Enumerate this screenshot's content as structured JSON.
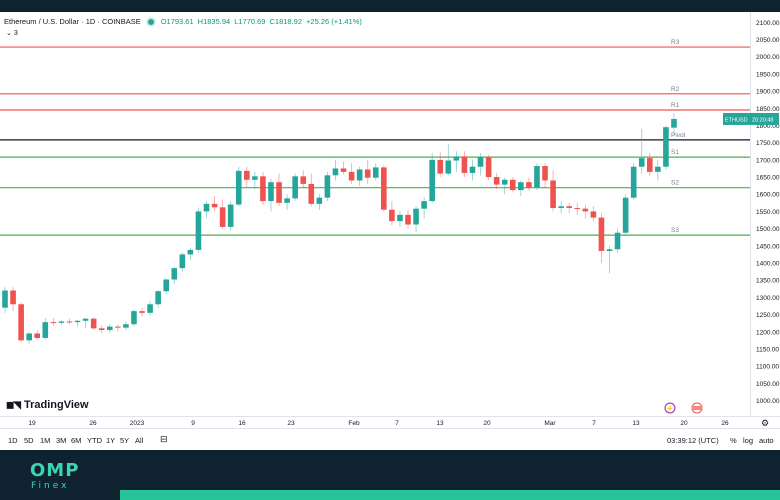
{
  "legend": {
    "title": "Ethereum / U.S. Dollar · 1D · COINBASE",
    "open": "O1793.61",
    "high": "H1835.94",
    "low": "L1770.69",
    "close": "C1818.92",
    "change": "+25.26 (+1.41%)",
    "indicators_count": "3"
  },
  "price_tag": {
    "symbol": "ETHUSD",
    "countdown": "20:20:48"
  },
  "branding": {
    "tradingview": "TradingView",
    "omp": "OMP",
    "finex": "Finex"
  },
  "bottombar": {
    "ranges": [
      "1D",
      "5D",
      "1M",
      "3M",
      "6M",
      "YTD",
      "1Y",
      "5Y",
      "All"
    ],
    "time": "03:39:12 (UTC)",
    "percent": "%",
    "log": "log",
    "auto": "auto"
  },
  "colors": {
    "up": "#26a69a",
    "down": "#ef5350",
    "resistance": "#ef5350",
    "support": "#4caf50",
    "pivot": "#131722"
  },
  "chart_data": {
    "type": "candlestick",
    "symbol": "ETHUSD",
    "ylim": [
      955,
      2130
    ],
    "y_ticks": [
      1000,
      1050,
      1100,
      1150,
      1200,
      1250,
      1300,
      1350,
      1400,
      1450,
      1500,
      1550,
      1600,
      1650,
      1700,
      1750,
      1800,
      1850,
      1900,
      1950,
      2000,
      2050,
      2100
    ],
    "x_ticks": [
      "19",
      "26",
      "2023",
      "9",
      "16",
      "23",
      "Feb",
      "7",
      "13",
      "20",
      "Mar",
      "7",
      "13",
      "20",
      "26"
    ],
    "levels": [
      {
        "name": "R3",
        "value": 2028,
        "kind": "resistance"
      },
      {
        "name": "R2",
        "value": 1892,
        "kind": "resistance"
      },
      {
        "name": "R1",
        "value": 1845,
        "kind": "resistance"
      },
      {
        "name": "Pivot",
        "value": 1758,
        "kind": "pivot"
      },
      {
        "name": "S1",
        "value": 1708,
        "kind": "support"
      },
      {
        "name": "S2",
        "value": 1619,
        "kind": "support"
      },
      {
        "name": "S3",
        "value": 1481,
        "kind": "support"
      }
    ],
    "last_price": 1818.92,
    "candles": [
      {
        "o": 1270,
        "h": 1330,
        "l": 1255,
        "c": 1320
      },
      {
        "o": 1320,
        "h": 1330,
        "l": 1260,
        "c": 1280
      },
      {
        "o": 1280,
        "h": 1285,
        "l": 1170,
        "c": 1175
      },
      {
        "o": 1175,
        "h": 1200,
        "l": 1165,
        "c": 1195
      },
      {
        "o": 1195,
        "h": 1205,
        "l": 1178,
        "c": 1182
      },
      {
        "o": 1182,
        "h": 1240,
        "l": 1178,
        "c": 1228
      },
      {
        "o": 1228,
        "h": 1240,
        "l": 1218,
        "c": 1226
      },
      {
        "o": 1226,
        "h": 1235,
        "l": 1220,
        "c": 1230
      },
      {
        "o": 1230,
        "h": 1238,
        "l": 1222,
        "c": 1228
      },
      {
        "o": 1228,
        "h": 1235,
        "l": 1215,
        "c": 1232
      },
      {
        "o": 1232,
        "h": 1240,
        "l": 1210,
        "c": 1238
      },
      {
        "o": 1238,
        "h": 1242,
        "l": 1205,
        "c": 1210
      },
      {
        "o": 1210,
        "h": 1218,
        "l": 1195,
        "c": 1205
      },
      {
        "o": 1205,
        "h": 1222,
        "l": 1198,
        "c": 1215
      },
      {
        "o": 1215,
        "h": 1220,
        "l": 1200,
        "c": 1212
      },
      {
        "o": 1212,
        "h": 1230,
        "l": 1205,
        "c": 1222
      },
      {
        "o": 1222,
        "h": 1265,
        "l": 1215,
        "c": 1260
      },
      {
        "o": 1260,
        "h": 1270,
        "l": 1245,
        "c": 1255
      },
      {
        "o": 1255,
        "h": 1290,
        "l": 1248,
        "c": 1280
      },
      {
        "o": 1280,
        "h": 1320,
        "l": 1270,
        "c": 1318
      },
      {
        "o": 1318,
        "h": 1355,
        "l": 1310,
        "c": 1352
      },
      {
        "o": 1352,
        "h": 1390,
        "l": 1340,
        "c": 1385
      },
      {
        "o": 1385,
        "h": 1430,
        "l": 1375,
        "c": 1425
      },
      {
        "o": 1425,
        "h": 1445,
        "l": 1410,
        "c": 1438
      },
      {
        "o": 1438,
        "h": 1560,
        "l": 1430,
        "c": 1550
      },
      {
        "o": 1550,
        "h": 1580,
        "l": 1530,
        "c": 1572
      },
      {
        "o": 1572,
        "h": 1595,
        "l": 1550,
        "c": 1562
      },
      {
        "o": 1562,
        "h": 1585,
        "l": 1500,
        "c": 1505
      },
      {
        "o": 1505,
        "h": 1580,
        "l": 1495,
        "c": 1570
      },
      {
        "o": 1570,
        "h": 1680,
        "l": 1565,
        "c": 1668
      },
      {
        "o": 1668,
        "h": 1680,
        "l": 1620,
        "c": 1642
      },
      {
        "o": 1642,
        "h": 1665,
        "l": 1615,
        "c": 1652
      },
      {
        "o": 1652,
        "h": 1665,
        "l": 1570,
        "c": 1580
      },
      {
        "o": 1580,
        "h": 1645,
        "l": 1550,
        "c": 1635
      },
      {
        "o": 1635,
        "h": 1660,
        "l": 1565,
        "c": 1575
      },
      {
        "o": 1575,
        "h": 1600,
        "l": 1555,
        "c": 1588
      },
      {
        "o": 1588,
        "h": 1660,
        "l": 1580,
        "c": 1652
      },
      {
        "o": 1652,
        "h": 1670,
        "l": 1620,
        "c": 1630
      },
      {
        "o": 1630,
        "h": 1660,
        "l": 1565,
        "c": 1572
      },
      {
        "o": 1572,
        "h": 1600,
        "l": 1555,
        "c": 1590
      },
      {
        "o": 1590,
        "h": 1665,
        "l": 1580,
        "c": 1655
      },
      {
        "o": 1655,
        "h": 1700,
        "l": 1640,
        "c": 1675
      },
      {
        "o": 1675,
        "h": 1695,
        "l": 1658,
        "c": 1665
      },
      {
        "o": 1665,
        "h": 1690,
        "l": 1630,
        "c": 1640
      },
      {
        "o": 1640,
        "h": 1680,
        "l": 1625,
        "c": 1672
      },
      {
        "o": 1672,
        "h": 1700,
        "l": 1630,
        "c": 1648
      },
      {
        "o": 1648,
        "h": 1690,
        "l": 1640,
        "c": 1678
      },
      {
        "o": 1678,
        "h": 1685,
        "l": 1550,
        "c": 1555
      },
      {
        "o": 1555,
        "h": 1580,
        "l": 1510,
        "c": 1522
      },
      {
        "o": 1522,
        "h": 1550,
        "l": 1505,
        "c": 1540
      },
      {
        "o": 1540,
        "h": 1555,
        "l": 1500,
        "c": 1512
      },
      {
        "o": 1512,
        "h": 1565,
        "l": 1490,
        "c": 1558
      },
      {
        "o": 1558,
        "h": 1592,
        "l": 1530,
        "c": 1580
      },
      {
        "o": 1580,
        "h": 1720,
        "l": 1575,
        "c": 1700
      },
      {
        "o": 1700,
        "h": 1722,
        "l": 1650,
        "c": 1660
      },
      {
        "o": 1660,
        "h": 1745,
        "l": 1655,
        "c": 1698
      },
      {
        "o": 1698,
        "h": 1725,
        "l": 1665,
        "c": 1710
      },
      {
        "o": 1710,
        "h": 1725,
        "l": 1650,
        "c": 1662
      },
      {
        "o": 1662,
        "h": 1700,
        "l": 1640,
        "c": 1680
      },
      {
        "o": 1680,
        "h": 1720,
        "l": 1655,
        "c": 1708
      },
      {
        "o": 1708,
        "h": 1715,
        "l": 1640,
        "c": 1650
      },
      {
        "o": 1650,
        "h": 1662,
        "l": 1615,
        "c": 1628
      },
      {
        "o": 1628,
        "h": 1648,
        "l": 1600,
        "c": 1642
      },
      {
        "o": 1642,
        "h": 1650,
        "l": 1605,
        "c": 1612
      },
      {
        "o": 1612,
        "h": 1640,
        "l": 1595,
        "c": 1635
      },
      {
        "o": 1635,
        "h": 1648,
        "l": 1610,
        "c": 1620
      },
      {
        "o": 1620,
        "h": 1690,
        "l": 1612,
        "c": 1682
      },
      {
        "o": 1682,
        "h": 1690,
        "l": 1620,
        "c": 1640
      },
      {
        "o": 1640,
        "h": 1670,
        "l": 1550,
        "c": 1560
      },
      {
        "o": 1560,
        "h": 1580,
        "l": 1545,
        "c": 1565
      },
      {
        "o": 1565,
        "h": 1575,
        "l": 1545,
        "c": 1560
      },
      {
        "o": 1560,
        "h": 1575,
        "l": 1540,
        "c": 1558
      },
      {
        "o": 1558,
        "h": 1570,
        "l": 1530,
        "c": 1550
      },
      {
        "o": 1550,
        "h": 1565,
        "l": 1520,
        "c": 1532
      },
      {
        "o": 1532,
        "h": 1545,
        "l": 1400,
        "c": 1435
      },
      {
        "o": 1435,
        "h": 1450,
        "l": 1370,
        "c": 1440
      },
      {
        "o": 1440,
        "h": 1500,
        "l": 1430,
        "c": 1488
      },
      {
        "o": 1488,
        "h": 1600,
        "l": 1480,
        "c": 1590
      },
      {
        "o": 1590,
        "h": 1690,
        "l": 1585,
        "c": 1680
      },
      {
        "o": 1680,
        "h": 1790,
        "l": 1660,
        "c": 1705
      },
      {
        "o": 1705,
        "h": 1720,
        "l": 1652,
        "c": 1665
      },
      {
        "o": 1665,
        "h": 1700,
        "l": 1640,
        "c": 1680
      },
      {
        "o": 1680,
        "h": 1800,
        "l": 1672,
        "c": 1795
      },
      {
        "o": 1793.61,
        "h": 1835.94,
        "l": 1770.69,
        "c": 1818.92
      }
    ]
  }
}
